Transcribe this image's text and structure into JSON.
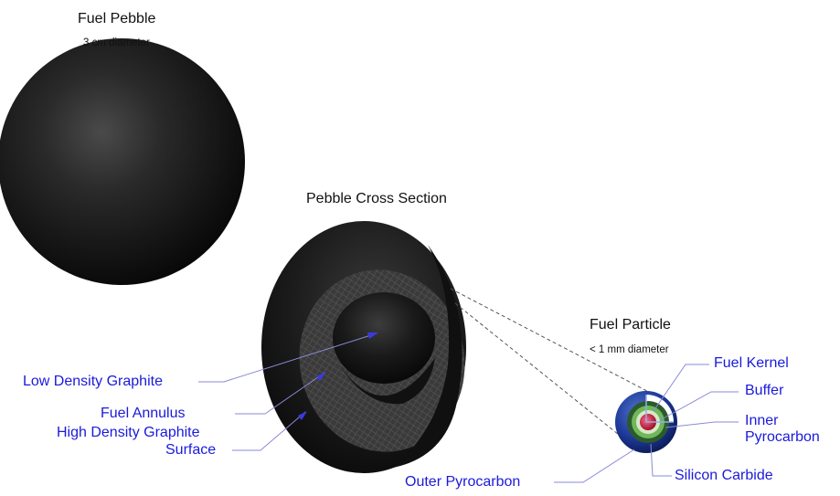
{
  "pebble": {
    "title": "Fuel Pebble",
    "subtitle": "3 cm diameter"
  },
  "cross_section": {
    "title": "Pebble Cross Section",
    "labels": {
      "low_density": "Low Density Graphite",
      "fuel_annulus": "Fuel Annulus",
      "high_density_line1": "High Density Graphite",
      "high_density_line2": "Surface"
    }
  },
  "particle": {
    "title": "Fuel Particle",
    "subtitle": "< 1 mm diameter",
    "labels": {
      "fuel_kernel": "Fuel Kernel",
      "buffer": "Buffer",
      "inner_line1": "Inner",
      "inner_line2": "Pyrocarbon",
      "silicon_carbide": "Silicon Carbide",
      "outer_pyrocarbon": "Outer Pyrocarbon"
    }
  },
  "colors": {
    "label_text": "#1a1adb",
    "leader_line": "#8a8ad8",
    "pebble": "#1a1a1a",
    "kernel": "#c0143c",
    "particle_shell": "#1e3a9a"
  }
}
